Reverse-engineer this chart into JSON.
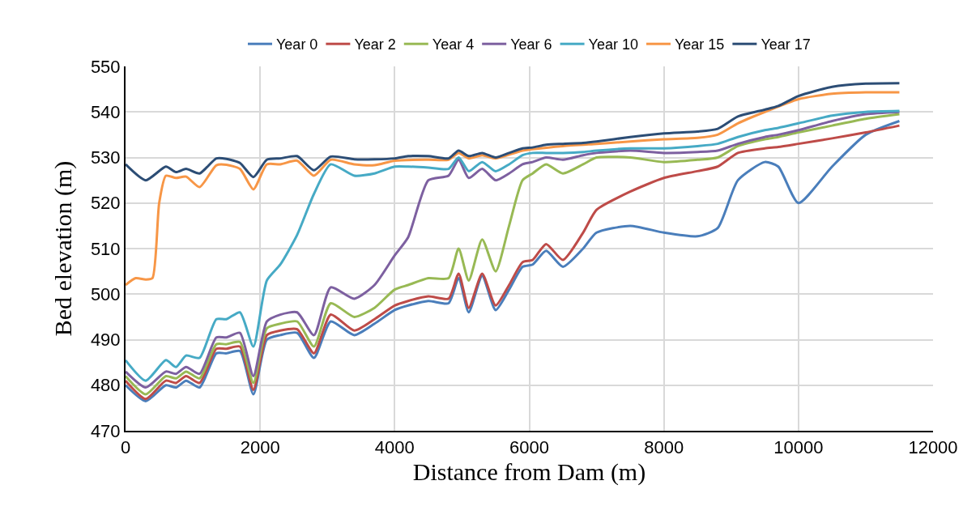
{
  "chart_data": {
    "type": "line",
    "xlabel": "Distance from Dam (m)",
    "ylabel": "Bed elevation (m)",
    "x": [
      0,
      300,
      600,
      750,
      900,
      1100,
      1350,
      1500,
      1700,
      1900,
      2100,
      2300,
      2550,
      2800,
      3050,
      3400,
      3700,
      4000,
      4200,
      4500,
      4800,
      4950,
      5100,
      5300,
      5500,
      5700,
      5900,
      6050,
      6250,
      6500,
      6800,
      7000,
      7500,
      8000,
      8500,
      8800,
      9100,
      9500,
      9700,
      10000,
      10500,
      11000,
      11500
    ],
    "series": [
      {
        "name": "Year 0",
        "color": "#4a7ebb",
        "values": [
          480,
          476.5,
          480,
          479.5,
          481,
          479.5,
          487,
          487,
          487.5,
          478,
          490,
          491,
          491.5,
          486,
          494,
          491,
          493.5,
          496.5,
          497.5,
          498.5,
          498,
          503.5,
          496,
          504,
          496.5,
          501,
          506,
          506.5,
          509.5,
          506,
          510,
          513.5,
          515,
          513.5,
          512.7,
          514.5,
          525,
          529,
          528,
          520,
          528,
          535,
          538
        ]
      },
      {
        "name": "Year 2",
        "color": "#be4b48",
        "values": [
          481,
          477,
          481,
          480.5,
          482,
          480.5,
          488,
          488,
          488.5,
          479,
          491,
          492,
          492.3,
          487,
          495.5,
          492,
          494.5,
          497.5,
          498.5,
          499.5,
          499,
          504.5,
          497,
          504.5,
          497.5,
          502,
          507,
          507.5,
          511,
          507.5,
          513.5,
          518.5,
          522.5,
          525.5,
          527,
          528,
          531,
          532,
          532.3,
          533,
          534.2,
          535.5,
          537
        ]
      },
      {
        "name": "Year 4",
        "color": "#98b954",
        "values": [
          482,
          478,
          482,
          481.5,
          483,
          481.5,
          489,
          489,
          489.5,
          480.5,
          492.5,
          493.5,
          494,
          488.5,
          498,
          495,
          497,
          501,
          502,
          503.5,
          503.5,
          510,
          503,
          512,
          505,
          515,
          525,
          526.5,
          528.5,
          526.5,
          528.5,
          530,
          530,
          529,
          529.5,
          530,
          532.5,
          534,
          534.5,
          535.5,
          537,
          538.5,
          539.5
        ]
      },
      {
        "name": "Year 6",
        "color": "#7d60a0",
        "values": [
          483,
          479.5,
          483,
          482.5,
          484,
          482.5,
          490.5,
          490.5,
          491.5,
          482,
          494,
          495.5,
          496,
          491,
          501.5,
          499,
          502,
          508.5,
          512.5,
          525,
          526,
          529.5,
          525.5,
          527.5,
          525,
          526.5,
          528.5,
          529,
          530,
          529.5,
          530.5,
          531,
          531.5,
          531,
          531.2,
          531.5,
          533,
          534.5,
          535,
          536,
          538,
          539.5,
          540
        ]
      },
      {
        "name": "Year 10",
        "color": "#46aac5",
        "values": [
          485.5,
          481,
          485.5,
          484,
          486.5,
          486,
          494.5,
          494.5,
          496,
          488.5,
          503,
          506.5,
          513,
          522,
          528.5,
          526,
          526.5,
          528,
          528,
          527.8,
          527.5,
          530,
          527,
          529,
          527,
          528.5,
          530.5,
          531,
          531,
          531,
          531.2,
          531.5,
          532,
          532,
          532.5,
          533,
          534.5,
          536,
          536.5,
          537.5,
          539.2,
          540,
          540.2
        ]
      },
      {
        "name": "Year 15",
        "color": "#f79646",
        "x": [
          0,
          150,
          300,
          400,
          500,
          600,
          750,
          900,
          1100,
          1350,
          1500,
          1700,
          1900,
          2100,
          2300,
          2550,
          2800,
          3050,
          3400,
          3700,
          4000,
          4500,
          4800,
          4950,
          5100,
          5300,
          5500,
          5900,
          6500,
          7000,
          7500,
          8000,
          8500,
          8800,
          9100,
          9500,
          10000,
          10500,
          11000,
          11500
        ],
        "values": [
          502,
          503.5,
          503.2,
          503.5,
          520,
          526,
          525.5,
          525.8,
          523.5,
          528.3,
          528.4,
          527.5,
          523,
          528.5,
          528.5,
          529.3,
          526,
          529.5,
          528.5,
          528.3,
          529.3,
          529.5,
          529.5,
          531,
          529.8,
          530.5,
          529.8,
          531.5,
          532.5,
          533,
          533.5,
          534,
          534.3,
          535,
          537.5,
          540,
          542.8,
          544,
          544.3,
          544.3
        ]
      },
      {
        "name": "Year 17",
        "color": "#2c4d75",
        "values": [
          528.5,
          525,
          528,
          526.8,
          527.5,
          526.5,
          529.8,
          529.7,
          528.8,
          525.7,
          529.5,
          529.8,
          530.3,
          527.2,
          530.2,
          529.6,
          529.6,
          529.8,
          530.3,
          530.3,
          529.8,
          531.5,
          530.3,
          531,
          530,
          531,
          532,
          532.2,
          532.8,
          533,
          533.2,
          533.5,
          534.5,
          535.3,
          535.7,
          536.3,
          539,
          540.5,
          541.3,
          543.5,
          545.5,
          546.2,
          546.3
        ]
      }
    ],
    "xlim": [
      0,
      12000
    ],
    "xticks": [
      0,
      2000,
      4000,
      6000,
      8000,
      10000,
      12000
    ],
    "ylim": [
      470,
      550
    ],
    "yticks": [
      470,
      480,
      490,
      500,
      510,
      520,
      530,
      540,
      550
    ],
    "grid": true,
    "legend": "top",
    "marker": "none",
    "line_style": "solid"
  }
}
